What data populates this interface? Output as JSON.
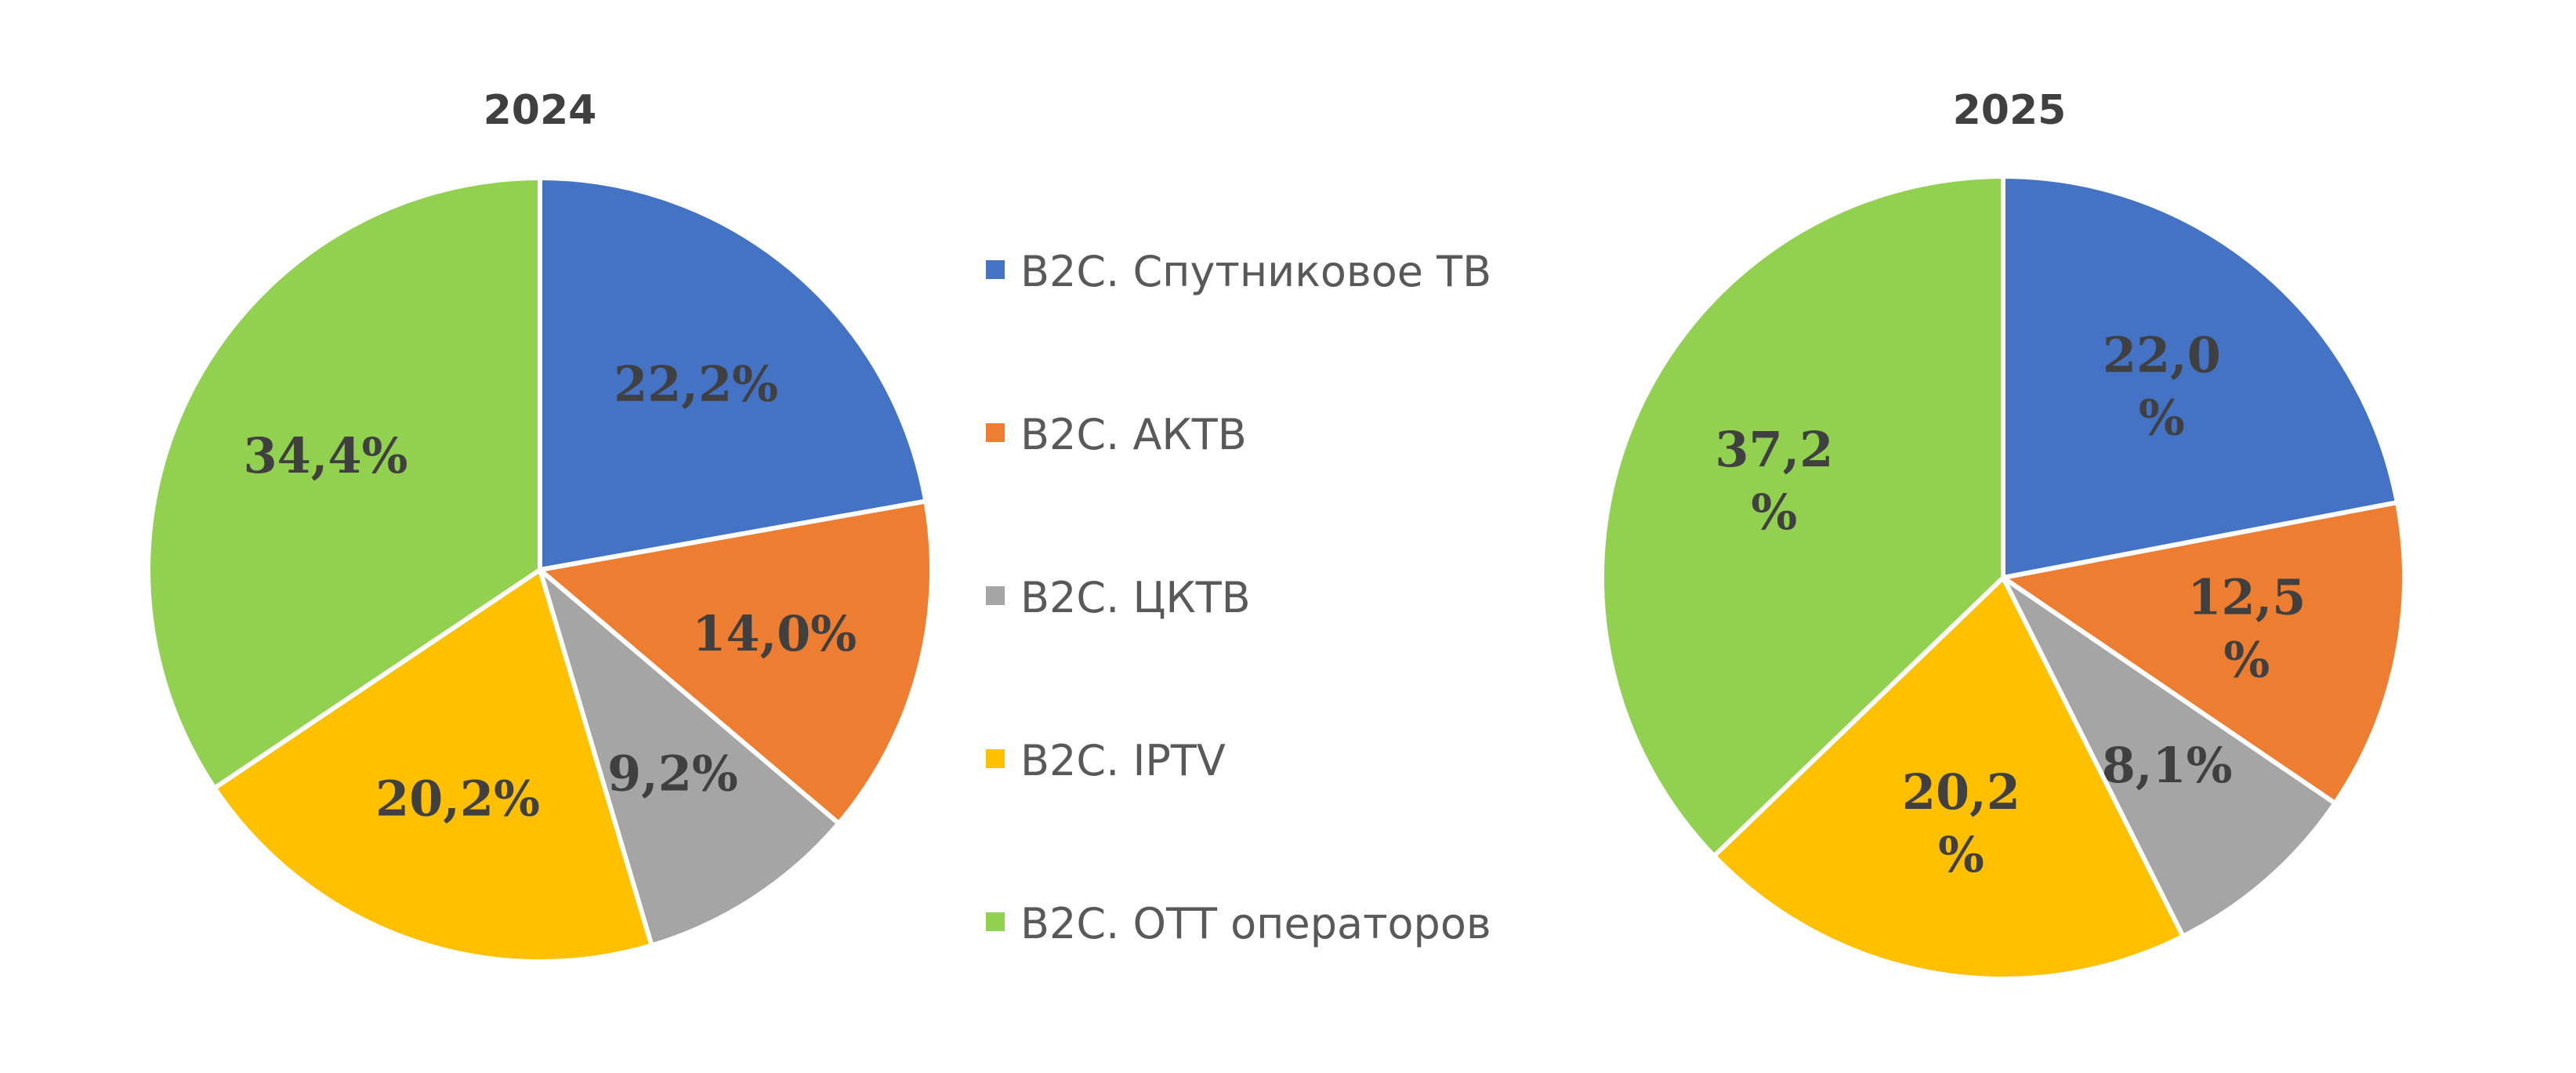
{
  "chart_data": [
    {
      "type": "pie",
      "title": "2024",
      "categories": [
        "B2C. Спутниковое ТВ",
        "B2C. АКТВ",
        "B2C. ЦКТВ",
        "B2C. IPTV",
        "B2C. OTT операторов"
      ],
      "values": [
        22.2,
        14.0,
        9.2,
        20.2,
        34.4
      ],
      "labels": [
        "22,2%",
        "14,0%",
        "9,2%",
        "20,2%",
        "34,4%"
      ],
      "colors": [
        "#4472C4",
        "#ED7D31",
        "#A5A5A5",
        "#FFC000",
        "#92D050"
      ]
    },
    {
      "type": "pie",
      "title": "2025",
      "categories": [
        "B2C. Спутниковое ТВ",
        "B2C. АКТВ",
        "B2C. ЦКТВ",
        "B2C. IPTV",
        "B2C. OTT операторов"
      ],
      "values": [
        22.0,
        12.5,
        8.1,
        20.2,
        37.2
      ],
      "labels": [
        "22,0 %",
        "12,5 %",
        "8,1%",
        "20,2 %",
        "37,2 %"
      ],
      "colors": [
        "#4472C4",
        "#ED7D31",
        "#A5A5A5",
        "#FFC000",
        "#92D050"
      ]
    }
  ],
  "legend": {
    "position": "center",
    "items": [
      {
        "label": "B2C. Спутниковое ТВ",
        "color": "#4472C4"
      },
      {
        "label": "B2C. АКТВ",
        "color": "#ED7D31"
      },
      {
        "label": "B2C. ЦКТВ",
        "color": "#A5A5A5"
      },
      {
        "label": "B2C. IPTV",
        "color": "#FFC000"
      },
      {
        "label": "B2C. OTT операторов",
        "color": "#92D050"
      }
    ]
  }
}
